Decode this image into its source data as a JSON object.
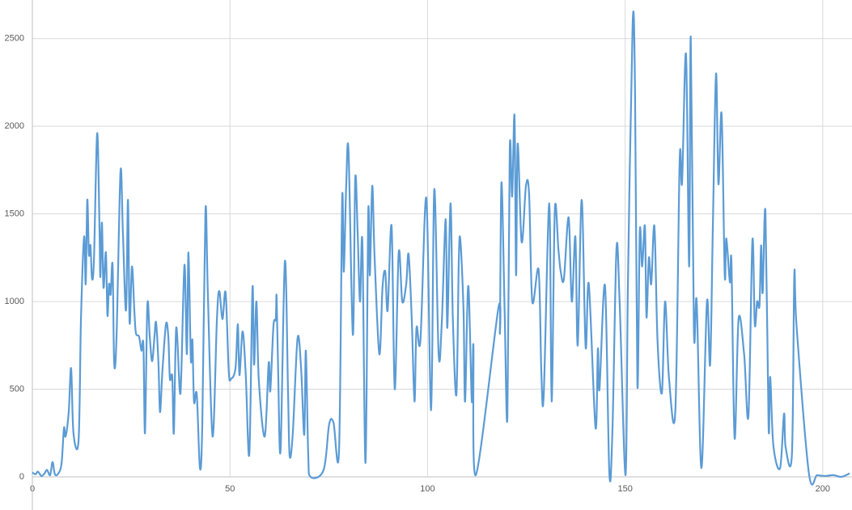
{
  "chart_data": {
    "type": "line",
    "x": [
      0,
      0.8,
      1.4,
      2.3,
      3.1,
      3.7,
      4.5,
      5.1,
      5.7,
      6.6,
      7.4,
      8,
      8.4,
      9.2,
      9.8,
      10.4,
      11.7,
      12.3,
      13.1,
      13.5,
      13.9,
      14.3,
      14.7,
      15.1,
      15.6,
      16.4,
      17,
      17.2,
      17.6,
      18,
      18.6,
      19,
      19.4,
      19.8,
      20.3,
      20.7,
      21.3,
      22.3,
      22.9,
      23.7,
      24.2,
      24.6,
      25.2,
      25.8,
      26.2,
      27,
      27.6,
      28.1,
      28.5,
      29.1,
      29.7,
      30.3,
      30.9,
      31.3,
      31.9,
      32.3,
      32.9,
      33.8,
      34.4,
      34.8,
      35.4,
      35.8,
      36.4,
      37.3,
      37.7,
      38.5,
      39.1,
      39.5,
      40.1,
      40.5,
      40.9,
      41.6,
      42.4,
      43,
      43.8,
      44.4,
      45.6,
      46.7,
      47.3,
      48.1,
      48.9,
      49.7,
      50.3,
      51.4,
      52,
      52.4,
      53.2,
      54,
      54.9,
      55.7,
      56.1,
      56.7,
      57.3,
      58.8,
      59.8,
      60.2,
      61,
      61.6,
      61.8,
      62.2,
      62.8,
      63.9,
      64.7,
      65.1,
      65.9,
      67.1,
      68,
      68.8,
      69.2,
      69.8,
      70.4,
      73.7,
      75.1,
      76.2,
      77.6,
      78.4,
      78.8,
      79.4,
      80,
      81.1,
      81.7,
      82.3,
      82.9,
      83.5,
      84.3,
      85,
      85.4,
      86,
      86.6,
      87.8,
      88.6,
      89.3,
      89.9,
      90.9,
      91.7,
      92.7,
      93.6,
      94.6,
      95.2,
      96,
      96.7,
      97.2,
      98.2,
      99.7,
      100.9,
      101.7,
      102.8,
      103.6,
      104.6,
      105,
      105.8,
      106.4,
      107.3,
      107.9,
      108.3,
      109.1,
      109.5,
      110.3,
      111.2,
      111.6,
      112.2,
      117.9,
      118.3,
      118.7,
      119.5,
      120.2,
      120.8,
      121.4,
      122,
      122.4,
      122.8,
      123.8,
      124.9,
      125.7,
      126.5,
      128.1,
      128.8,
      129.4,
      130.8,
      131.4,
      132.2,
      133.1,
      133.7,
      134.5,
      135.7,
      136.5,
      137.4,
      138,
      139,
      140,
      140.8,
      142.5,
      143.1,
      143.5,
      144.9,
      146,
      146.8,
      147.8,
      148.6,
      150.1,
      150.7,
      151.9,
      152.5,
      153.1,
      153.7,
      154.3,
      155,
      155.4,
      156,
      156.6,
      157.4,
      158.2,
      159.3,
      160.1,
      161.1,
      162.7,
      163.8,
      164.4,
      165.4,
      166.2,
      166.6,
      167.4,
      168.1,
      169.3,
      170.7,
      171.5,
      172.2,
      173,
      173.6,
      174.4,
      175.2,
      175.6,
      176.5,
      176.9,
      177.7,
      178.7,
      180.1,
      181.2,
      182.2,
      182.8,
      183.4,
      184,
      184.4,
      184.8,
      185.5,
      186.3,
      186.7,
      187.5,
      189.2,
      190.2,
      190.6,
      192.2,
      192.8,
      193.4,
      196.5,
      198.6,
      200.6,
      202.7,
      204.7,
      206.8
    ],
    "series": [
      {
        "color": "#5b9bd5",
        "values": [
          25,
          15,
          30,
          5,
          20,
          40,
          10,
          85,
          15,
          20,
          80,
          280,
          230,
          370,
          620,
          250,
          210,
          900,
          1370,
          1100,
          1580,
          1270,
          1320,
          1130,
          1250,
          1960,
          1400,
          1140,
          1450,
          1080,
          1280,
          920,
          1100,
          1040,
          1210,
          650,
          800,
          1740,
          1400,
          950,
          1580,
          880,
          1200,
          950,
          820,
          800,
          720,
          750,
          250,
          980,
          800,
          660,
          800,
          880,
          650,
          370,
          600,
          870,
          800,
          560,
          570,
          250,
          850,
          490,
          600,
          1210,
          700,
          1280,
          670,
          780,
          430,
          470,
          50,
          300,
          1520,
          1050,
          230,
          900,
          1060,
          900,
          1050,
          600,
          560,
          620,
          870,
          580,
          830,
          580,
          130,
          1080,
          640,
          1000,
          550,
          230,
          650,
          490,
          860,
          900,
          1030,
          600,
          150,
          1230,
          480,
          120,
          250,
          790,
          620,
          240,
          720,
          130,
          0,
          40,
          300,
          310,
          150,
          1590,
          1170,
          1650,
          1860,
          810,
          1700,
          1400,
          1000,
          1340,
          80,
          1510,
          1150,
          1660,
          1250,
          700,
          1080,
          1170,
          950,
          1430,
          500,
          1280,
          1000,
          1100,
          1270,
          900,
          430,
          850,
          780,
          1590,
          380,
          1640,
          700,
          880,
          1470,
          850,
          1560,
          900,
          470,
          1230,
          1350,
          950,
          430,
          1090,
          430,
          750,
          10,
          960,
          840,
          1680,
          950,
          340,
          1870,
          1600,
          2060,
          1150,
          1900,
          1340,
          1660,
          1610,
          1000,
          1180,
          590,
          470,
          1560,
          430,
          1520,
          1300,
          1170,
          1130,
          1480,
          1000,
          1370,
          750,
          1580,
          740,
          1100,
          280,
          730,
          500,
          1090,
          20,
          280,
          1300,
          1000,
          10,
          1100,
          2590,
          2200,
          520,
          1400,
          1200,
          1430,
          910,
          1250,
          1100,
          1430,
          770,
          480,
          1000,
          560,
          380,
          1810,
          1680,
          2410,
          1200,
          2510,
          830,
          1000,
          50,
          1000,
          640,
          1440,
          2300,
          1670,
          2070,
          1150,
          1360,
          1110,
          1220,
          220,
          900,
          700,
          350,
          1350,
          870,
          1000,
          980,
          1320,
          1050,
          1510,
          280,
          570,
          180,
          50,
          360,
          170,
          130,
          1150,
          850,
          20,
          10,
          5,
          10,
          0,
          20
        ]
      }
    ],
    "xlim": [
      0,
      207.4
    ],
    "ylim": [
      0,
      2720
    ],
    "xticks": [
      0,
      50,
      100,
      150,
      200
    ],
    "yticks": [
      0,
      500,
      1000,
      1500,
      2000,
      2500
    ],
    "grid": true
  }
}
